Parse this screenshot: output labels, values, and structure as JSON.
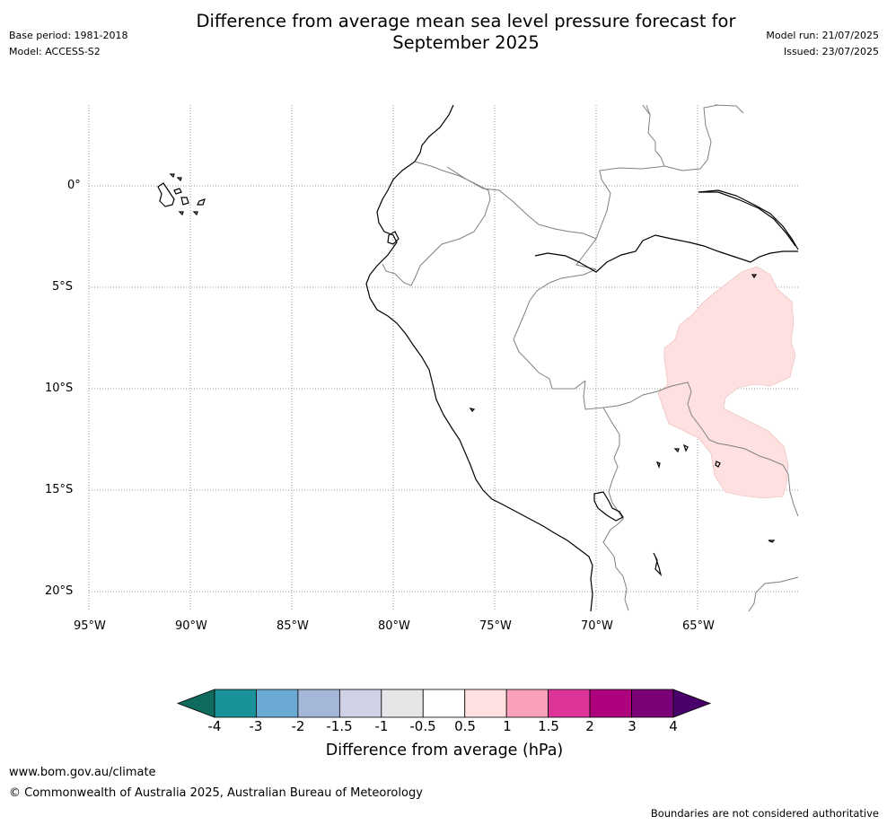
{
  "header": {
    "title_line1": "Difference from average mean sea level pressure forecast for",
    "title_line2": "September 2025",
    "base_period": "Base period: 1981-2018",
    "model": "Model: ACCESS-S2",
    "model_run": "Model run: 21/07/2025",
    "issued": "Issued: 23/07/2025"
  },
  "map": {
    "lon_ticks": [
      "95°W",
      "90°W",
      "85°W",
      "80°W",
      "75°W",
      "70°W",
      "65°W"
    ],
    "lat_ticks": [
      "0°",
      "5°S",
      "10°S",
      "15°S",
      "20°S"
    ],
    "anomaly_fill_color": "#fde0df",
    "coast_color": "#000000",
    "border_color": "#808080",
    "grid": "dotted"
  },
  "legend": {
    "title": "Difference from average (hPa)",
    "labels": [
      "-4",
      "-3",
      "-2",
      "-1.5",
      "-1",
      "-0.5",
      "0.5",
      "1",
      "1.5",
      "2",
      "3",
      "4"
    ],
    "colors": [
      "#0e6b5e",
      "#1a9299",
      "#6aaad2",
      "#a5b7d9",
      "#d0d0e6",
      "#e6e6e9",
      "#ffffff",
      "#fde0df",
      "#f9a0bb",
      "#dd349a",
      "#ad017e",
      "#7a0177",
      "#49006a"
    ]
  },
  "footer": {
    "url": "www.bom.gov.au/climate",
    "copyright": "© Commonwealth of Australia 2025, Australian Bureau of Meteorology",
    "note": "Boundaries are not considered authoritative"
  }
}
